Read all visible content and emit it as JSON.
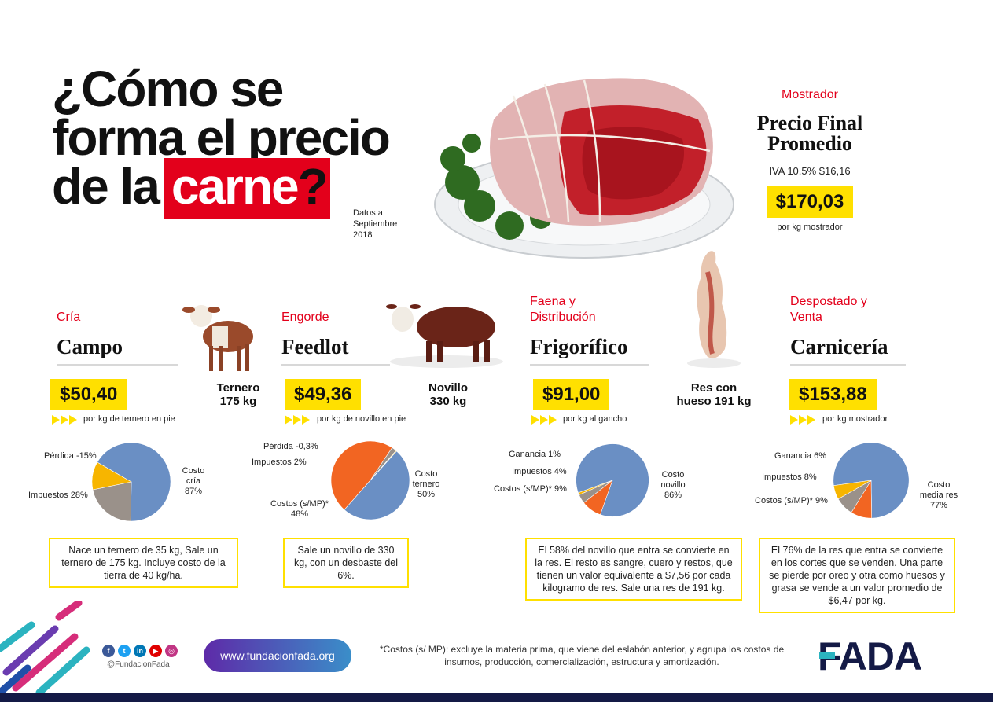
{
  "title": {
    "line1": "¿Cómo se",
    "line2": "forma el precio",
    "line3_prefix": "de la",
    "highlight": "carne",
    "suffix": "?",
    "date_note_1": "Datos a",
    "date_note_2": "Septiembre",
    "date_note_3": "2018"
  },
  "mostrador": {
    "stage": "Mostrador",
    "title_1": "Precio Final",
    "title_2": "Promedio",
    "iva": "IVA 10,5% $16,16",
    "price": "$170,03",
    "unit": "por kg mostrador"
  },
  "sections": [
    {
      "stage": "Cría",
      "stage_2": "",
      "title": "Campo",
      "price": "$50,40",
      "unit": "por kg de ternero en pie",
      "animal_1": "Ternero",
      "animal_2": "175 kg",
      "note": "Nace un ternero de 35 kg, Sale un ternero de 175 kg. Incluye costo de la tierra de 40 kg/ha.",
      "pie_labels": {
        "a": "Pérdida -15%",
        "b": "Impuestos 28%",
        "c1": "Costo",
        "c2": "cría",
        "c3": "87%"
      }
    },
    {
      "stage": "Engorde",
      "stage_2": "",
      "title": "Feedlot",
      "price": "$49,36",
      "unit": "por kg de novillo en pie",
      "animal_1": "Novillo",
      "animal_2": "330 kg",
      "note": "Sale un novillo de 330 kg, con un desbaste del 6%.",
      "pie_labels": {
        "a": "Pérdida -0,3%",
        "b": "Impuestos 2%",
        "c1": "Costo",
        "c2": "ternero",
        "c3": "50%",
        "d1": "Costos (s/MP)*",
        "d2": "48%"
      }
    },
    {
      "stage": "Faena y",
      "stage_2": "Distribución",
      "title": "Frigorífico",
      "price": "$91,00",
      "unit": "por kg al gancho",
      "animal_1": "Res con",
      "animal_2": "hueso 191 kg",
      "note": "El 58% del novillo que entra se convierte en la res. El resto es sangre, cuero y restos, que tienen un valor equivalente a $7,56 por cada kilogramo de res. Sale una res de 191 kg.",
      "pie_labels": {
        "a": "Ganancia 1%",
        "b": "Impuestos 4%",
        "d": "Costos (s/MP)* 9%",
        "c1": "Costo",
        "c2": "novillo",
        "c3": "86%"
      }
    },
    {
      "stage": "Despostado y",
      "stage_2": "Venta",
      "title": "Carnicería",
      "price": "$153,88",
      "unit": "por kg mostrador",
      "note": "El 76% de la res que entra se convierte en los cortes que se venden. Una parte se pierde por oreo y otra como huesos y grasa se vende a un valor promedio de $6,47 por kg.",
      "pie_labels": {
        "a": "Ganancia 6%",
        "b": "Impuestos 8%",
        "d": "Costos (s/MP)* 9%",
        "c1": "Costo",
        "c2": "media res",
        "c3": "77%"
      }
    }
  ],
  "chart_data": [
    {
      "type": "pie",
      "title": "Campo",
      "labels": [
        "Costo cría",
        "Impuestos",
        "Pérdida"
      ],
      "values": [
        87,
        28,
        -15
      ]
    },
    {
      "type": "pie",
      "title": "Feedlot",
      "labels": [
        "Costo ternero",
        "Costos (s/MP)*",
        "Impuestos",
        "Pérdida"
      ],
      "values": [
        50,
        48,
        2,
        -0.3
      ]
    },
    {
      "type": "pie",
      "title": "Frigorífico",
      "labels": [
        "Costo novillo",
        "Costos (s/MP)*",
        "Impuestos",
        "Ganancia"
      ],
      "values": [
        86,
        9,
        4,
        1
      ]
    },
    {
      "type": "pie",
      "title": "Carnicería",
      "labels": [
        "Costo media res",
        "Costos (s/MP)*",
        "Impuestos",
        "Ganancia"
      ],
      "values": [
        77,
        9,
        8,
        6
      ]
    }
  ],
  "colors": {
    "cost": "#6a8fc4",
    "tax": "#9a918a",
    "loss": "#f7b500",
    "costs_smp": "#f26522",
    "accent_red": "#e3001b",
    "highlight_yellow": "#ffe000"
  },
  "footer": {
    "handle": "@FundacionFada",
    "url": "www.fundacionfada.org",
    "footnote": "*Costos (s/ MP): excluye la materia prima, que viene del eslabón anterior, y agrupa los costos de insumos, producción, comercialización, estructura y amortización.",
    "logo": "FADA",
    "social_icons": [
      "facebook-icon",
      "twitter-icon",
      "linkedin-icon",
      "youtube-icon",
      "instagram-icon"
    ]
  }
}
